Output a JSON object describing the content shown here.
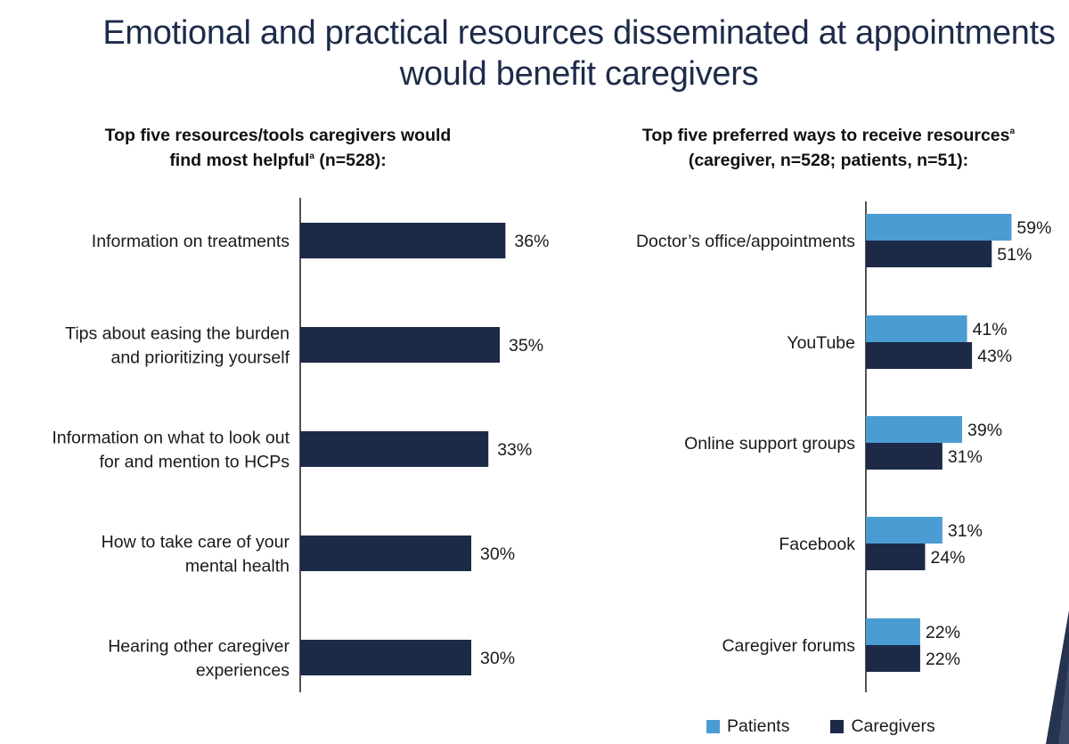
{
  "page": {
    "title_lines": [
      "Emotional and practical resources disseminated at appointments",
      "would benefit caregivers"
    ]
  },
  "colors": {
    "title": "#1d2b4a",
    "patients": "#4b9cd3",
    "caregivers": "#1c2a48",
    "axis": "#1a1a1a"
  },
  "chart_data": [
    {
      "type": "bar",
      "orientation": "horizontal",
      "subtitle_lines": [
        "Top five resources/tools caregivers would",
        "find most helpful"
      ],
      "subtitle_sup": "a",
      "subtitle_suffix": " (n=528):",
      "categories": [
        [
          "Information on treatments"
        ],
        [
          "Tips about easing the burden",
          "and prioritizing yourself"
        ],
        [
          "Information on what to look out",
          "for and mention to HCPs"
        ],
        [
          "How to take care of your",
          "mental health"
        ],
        [
          "Hearing other caregiver",
          "experiences"
        ]
      ],
      "values": [
        36,
        35,
        33,
        30,
        30
      ],
      "data_labels": [
        "36%",
        "35%",
        "33%",
        "30%",
        "30%"
      ],
      "xlim": [
        0,
        100
      ],
      "grid": false
    },
    {
      "type": "bar",
      "orientation": "horizontal",
      "subtitle_lines": [
        "Top five preferred ways to receive resources",
        "(caregiver, n=528; patients, n=51):"
      ],
      "subtitle_sup": "a",
      "categories": [
        "Doctor’s office/appointments",
        "YouTube",
        "Online support groups",
        "Facebook",
        "Caregiver forums"
      ],
      "series": [
        {
          "name": "Patients",
          "values": [
            59,
            41,
            39,
            31,
            22
          ],
          "data_labels": [
            "59%",
            "41%",
            "39%",
            "31%",
            "22%"
          ]
        },
        {
          "name": "Caregivers",
          "values": [
            51,
            43,
            31,
            24,
            22
          ],
          "data_labels": [
            "51%",
            "43%",
            "31%",
            "24%",
            "22%"
          ]
        }
      ],
      "xlim": [
        0,
        100
      ],
      "legend": {
        "position": "bottom",
        "entries": [
          "Patients",
          "Caregivers"
        ]
      },
      "grid": false
    }
  ]
}
